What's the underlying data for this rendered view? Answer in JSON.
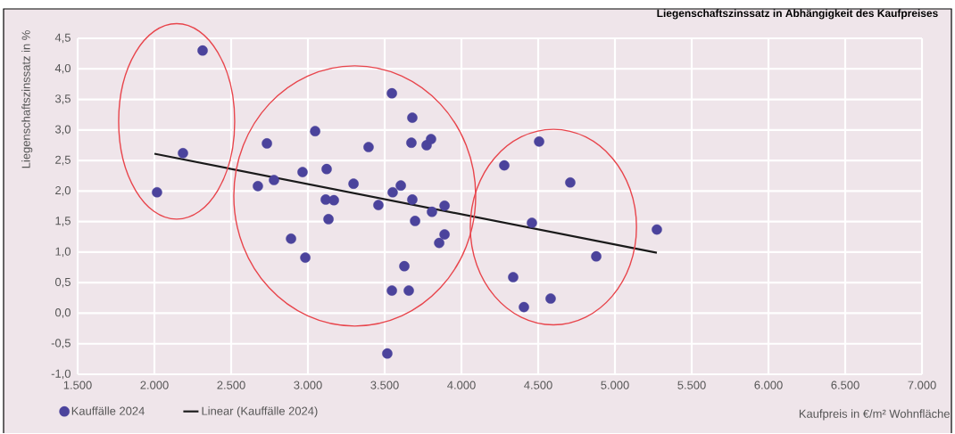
{
  "chart_data": {
    "type": "scatter",
    "title": "Liegenschaftszinssatz in Abhängigkeit des Kaufpreises",
    "xlabel": "Kaufpreis in €/m² Wohnfläche",
    "ylabel": "Liegenschaftszinssatz in %",
    "series": [
      {
        "name": "Kauffälle 2024",
        "color": "#4b439c",
        "marker": "circle",
        "x": [
          2314,
          2186,
          2017,
          2733,
          2779,
          2674,
          3047,
          2965,
          3122,
          2890,
          2983,
          3116,
          3169,
          3134,
          3297,
          3395,
          3459,
          3547,
          3552,
          3605,
          3680,
          3674,
          3773,
          3802,
          3680,
          3698,
          3808,
          3890,
          3890,
          3855,
          3628,
          3547,
          3657,
          3517,
          4506,
          4279,
          4709,
          4459,
          5273,
          4878,
          4337,
          4581,
          4407
        ],
        "values": [
          4.3,
          2.62,
          1.98,
          2.78,
          2.18,
          2.08,
          2.98,
          2.31,
          2.36,
          1.22,
          0.91,
          1.86,
          1.85,
          1.54,
          2.12,
          2.72,
          1.77,
          3.6,
          1.98,
          2.09,
          3.2,
          2.79,
          2.75,
          2.85,
          1.86,
          1.51,
          1.66,
          1.76,
          1.29,
          1.15,
          0.77,
          0.37,
          0.37,
          -0.66,
          2.81,
          2.42,
          2.14,
          1.48,
          1.37,
          0.93,
          0.59,
          0.24,
          0.1
        ]
      },
      {
        "name": "Linear (Kauffälle 2024)",
        "type": "line",
        "color": "#1a1a1a",
        "marker": "none",
        "line_style": "solid",
        "x": [
          2000,
          5273
        ],
        "values": [
          2.61,
          0.99
        ]
      }
    ],
    "xlim": [
      1500,
      7000
    ],
    "xticks": [
      {
        "value": 1500,
        "label": "1.500"
      },
      {
        "value": 2000,
        "label": "2.000"
      },
      {
        "value": 2500,
        "label": "2.500"
      },
      {
        "value": 3000,
        "label": "3.000"
      },
      {
        "value": 3500,
        "label": "3.500"
      },
      {
        "value": 4000,
        "label": "4.000"
      },
      {
        "value": 4500,
        "label": "4.500"
      },
      {
        "value": 5000,
        "label": "5.000"
      },
      {
        "value": 5500,
        "label": "5.500"
      },
      {
        "value": 6000,
        "label": "6.000"
      },
      {
        "value": 6500,
        "label": "6.500"
      },
      {
        "value": 7000,
        "label": "7.000"
      }
    ],
    "ylim": [
      -1.0,
      4.5
    ],
    "yticks": [
      {
        "value": -1.0,
        "label": "-1,0"
      },
      {
        "value": -0.5,
        "label": "-0,5"
      },
      {
        "value": 0.0,
        "label": "0,0"
      },
      {
        "value": 0.5,
        "label": "0,5"
      },
      {
        "value": 1.0,
        "label": "1,0"
      },
      {
        "value": 1.5,
        "label": "1,5"
      },
      {
        "value": 2.0,
        "label": "2,0"
      },
      {
        "value": 2.5,
        "label": "2,5"
      },
      {
        "value": 3.0,
        "label": "3,0"
      },
      {
        "value": 3.5,
        "label": "3,5"
      },
      {
        "value": 4.0,
        "label": "4,0"
      },
      {
        "value": 4.5,
        "label": "4,5"
      }
    ],
    "grid": true,
    "legend": "bottom"
  }
}
